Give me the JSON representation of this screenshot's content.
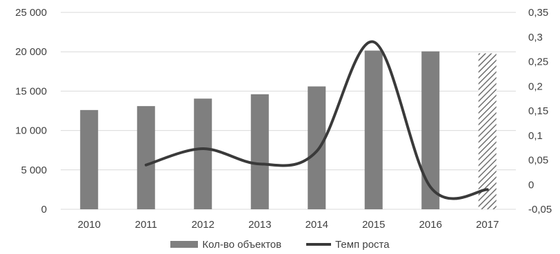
{
  "chart_data": {
    "type": "bar",
    "categories": [
      "2010",
      "2011",
      "2012",
      "2013",
      "2014",
      "2015",
      "2016",
      "2017"
    ],
    "series": [
      {
        "name": "Кол-во объектов",
        "type": "bar",
        "axis": "left",
        "values": [
          12600,
          13100,
          14050,
          14600,
          15600,
          20150,
          20050,
          19800
        ],
        "color": "#7f7f7f",
        "hatched_categories": [
          "2017"
        ]
      },
      {
        "name": "Темп роста",
        "type": "line",
        "axis": "right",
        "smooth": true,
        "x": [
          "2011",
          "2012",
          "2013",
          "2014",
          "2015",
          "2016",
          "2017"
        ],
        "values": [
          0.04,
          0.073,
          0.042,
          0.068,
          0.29,
          -0.005,
          -0.01
        ],
        "color": "#3a3a3a"
      }
    ],
    "y_left": {
      "ylim": [
        0,
        25000
      ],
      "ticks": [
        0,
        5000,
        10000,
        15000,
        20000,
        25000
      ],
      "tick_labels": [
        "0",
        "5 000",
        "10 000",
        "15 000",
        "20 000",
        "25 000"
      ]
    },
    "y_right": {
      "ylim": [
        -0.05,
        0.35
      ],
      "ticks": [
        -0.05,
        0,
        0.05,
        0.1,
        0.15,
        0.2,
        0.25,
        0.3,
        0.35
      ],
      "tick_labels": [
        "-0,05",
        "0",
        "0,05",
        "0,1",
        "0,15",
        "0,2",
        "0,25",
        "0,3",
        "0,35"
      ]
    },
    "title": "",
    "xlabel": "",
    "grid": true,
    "legend_position": "bottom"
  }
}
